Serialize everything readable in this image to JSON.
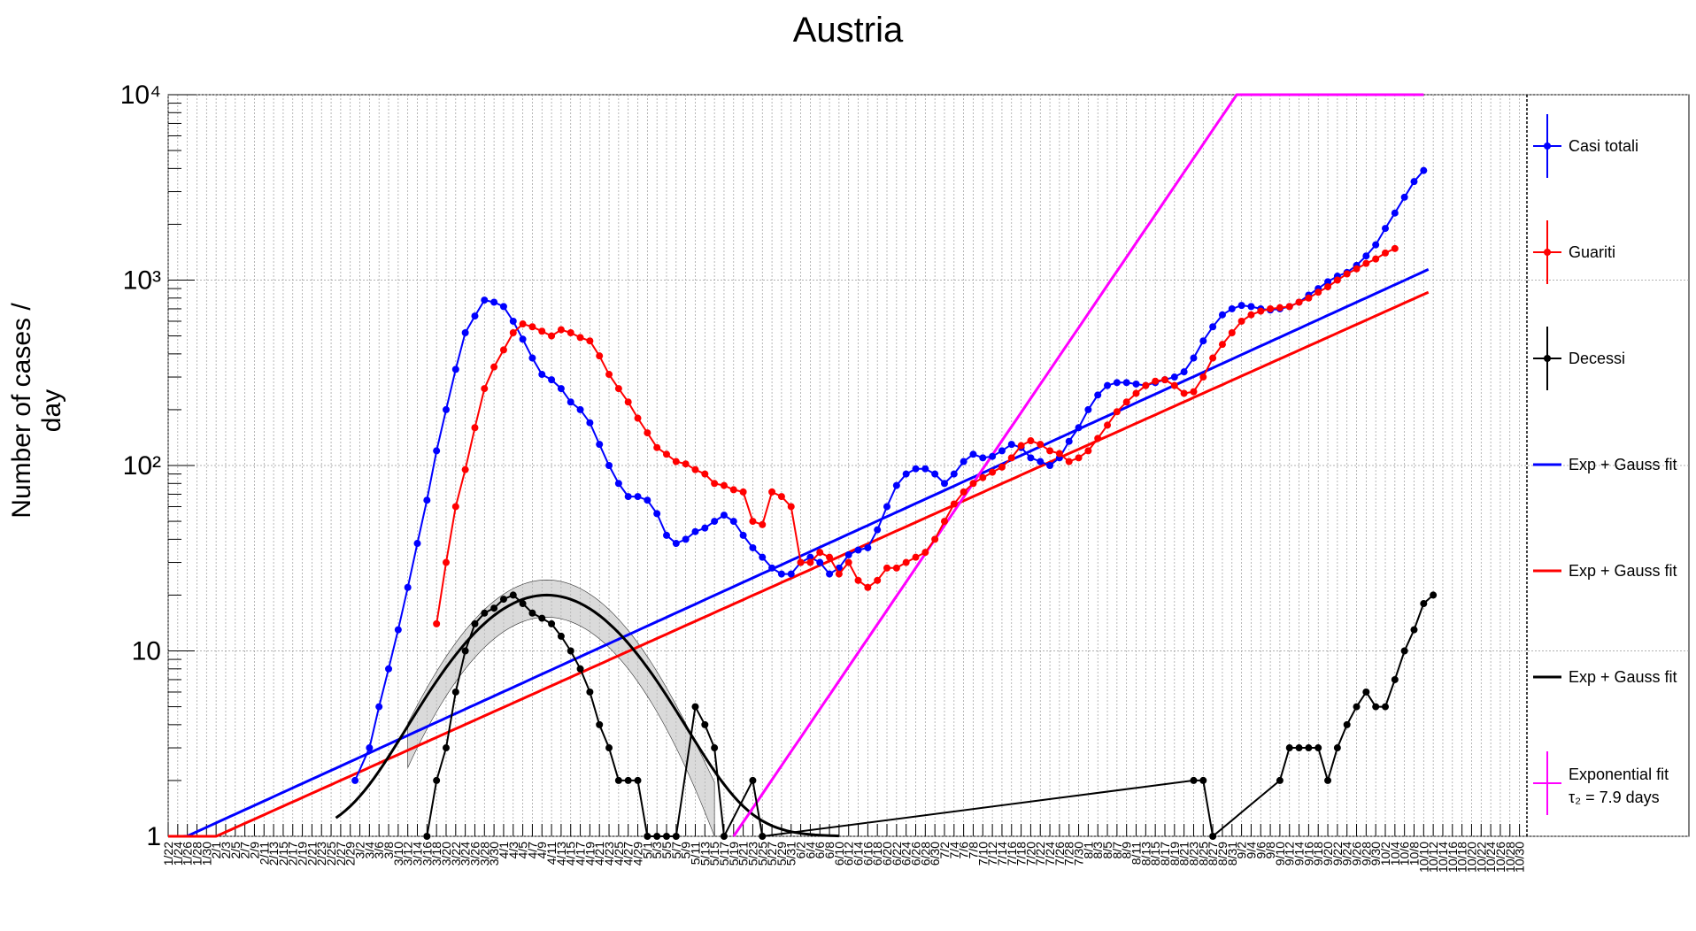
{
  "chart_data": {
    "type": "line",
    "title": "Austria",
    "ylabel": "Number of cases / day",
    "yscale": "log",
    "ylim": [
      1,
      10000
    ],
    "grid": true,
    "legend_position": "right",
    "y_ticks": [
      "1",
      "10",
      "10²",
      "10³",
      "10⁴"
    ],
    "x_ticks": [
      "1/22",
      "1/24",
      "1/26",
      "1/28",
      "1/30",
      "2/1",
      "2/3",
      "2/5",
      "2/7",
      "2/9",
      "2/11",
      "2/13",
      "2/15",
      "2/17",
      "2/19",
      "2/21",
      "2/23",
      "2/25",
      "2/27",
      "2/29",
      "3/2",
      "3/4",
      "3/6",
      "3/8",
      "3/10",
      "3/12",
      "3/14",
      "3/16",
      "3/18",
      "3/20",
      "3/22",
      "3/24",
      "3/26",
      "3/28",
      "3/30",
      "4/1",
      "4/3",
      "4/5",
      "4/7",
      "4/9",
      "4/11",
      "4/13",
      "4/15",
      "4/17",
      "4/19",
      "4/21",
      "4/23",
      "4/25",
      "4/27",
      "4/29",
      "5/1",
      "5/3",
      "5/5",
      "5/7",
      "5/9",
      "5/11",
      "5/13",
      "5/15",
      "5/17",
      "5/19",
      "5/21",
      "5/23",
      "5/25",
      "5/27",
      "5/29",
      "5/31",
      "6/2",
      "6/4",
      "6/6",
      "6/8",
      "6/10",
      "6/12",
      "6/14",
      "6/16",
      "6/18",
      "6/20",
      "6/22",
      "6/24",
      "6/26",
      "6/28",
      "6/30",
      "7/2",
      "7/4",
      "7/6",
      "7/8",
      "7/10",
      "7/12",
      "7/14",
      "7/16",
      "7/18",
      "7/20",
      "7/22",
      "7/24",
      "7/26",
      "7/28",
      "7/30",
      "8/1",
      "8/3",
      "8/5",
      "8/7",
      "8/9",
      "8/11",
      "8/13",
      "8/15",
      "8/17",
      "8/19",
      "8/21",
      "8/23",
      "8/25",
      "8/27",
      "8/29",
      "8/31",
      "9/2",
      "9/4",
      "9/6",
      "9/8",
      "9/10",
      "9/12",
      "9/14",
      "9/16",
      "9/18",
      "9/20",
      "9/22",
      "9/24",
      "9/26",
      "9/28",
      "9/30",
      "10/2",
      "10/4",
      "10/6",
      "10/8",
      "10/10",
      "10/12",
      "10/14",
      "10/16",
      "10/18",
      "10/20",
      "10/22",
      "10/24",
      "10/26",
      "10/28",
      "10/30"
    ],
    "series": [
      {
        "name": "Casi totali",
        "color": "#0000ff",
        "kind": "data",
        "points": [
          [
            39,
            2
          ],
          [
            42,
            3
          ],
          [
            44,
            5
          ],
          [
            46,
            8
          ],
          [
            48,
            13
          ],
          [
            50,
            22
          ],
          [
            52,
            38
          ],
          [
            54,
            65
          ],
          [
            56,
            120
          ],
          [
            58,
            200
          ],
          [
            60,
            330
          ],
          [
            62,
            520
          ],
          [
            64,
            640
          ],
          [
            66,
            780
          ],
          [
            68,
            760
          ],
          [
            70,
            720
          ],
          [
            72,
            600
          ],
          [
            74,
            480
          ],
          [
            76,
            380
          ],
          [
            78,
            310
          ],
          [
            80,
            290
          ],
          [
            82,
            260
          ],
          [
            84,
            220
          ],
          [
            86,
            200
          ],
          [
            88,
            170
          ],
          [
            90,
            130
          ],
          [
            92,
            100
          ],
          [
            94,
            80
          ],
          [
            96,
            68
          ],
          [
            98,
            68
          ],
          [
            100,
            65
          ],
          [
            102,
            55
          ],
          [
            104,
            42
          ],
          [
            106,
            38
          ],
          [
            108,
            40
          ],
          [
            110,
            44
          ],
          [
            112,
            46
          ],
          [
            114,
            50
          ],
          [
            116,
            54
          ],
          [
            118,
            50
          ],
          [
            120,
            42
          ],
          [
            122,
            36
          ],
          [
            124,
            32
          ],
          [
            126,
            28
          ],
          [
            128,
            26
          ],
          [
            130,
            26
          ],
          [
            132,
            30
          ],
          [
            134,
            32
          ],
          [
            136,
            30
          ],
          [
            138,
            26
          ],
          [
            140,
            28
          ],
          [
            142,
            33
          ],
          [
            144,
            35
          ],
          [
            146,
            36
          ],
          [
            148,
            45
          ],
          [
            150,
            60
          ],
          [
            152,
            78
          ],
          [
            154,
            90
          ],
          [
            156,
            96
          ],
          [
            158,
            96
          ],
          [
            160,
            90
          ],
          [
            162,
            80
          ],
          [
            164,
            90
          ],
          [
            166,
            105
          ],
          [
            168,
            115
          ],
          [
            170,
            110
          ],
          [
            172,
            112
          ],
          [
            174,
            120
          ],
          [
            176,
            130
          ],
          [
            178,
            125
          ],
          [
            180,
            110
          ],
          [
            182,
            105
          ],
          [
            184,
            100
          ],
          [
            186,
            110
          ],
          [
            188,
            135
          ],
          [
            190,
            160
          ],
          [
            192,
            200
          ],
          [
            194,
            240
          ],
          [
            196,
            270
          ],
          [
            198,
            280
          ],
          [
            200,
            280
          ],
          [
            202,
            275
          ],
          [
            204,
            270
          ],
          [
            206,
            280
          ],
          [
            208,
            290
          ],
          [
            210,
            300
          ],
          [
            212,
            320
          ],
          [
            214,
            380
          ],
          [
            216,
            470
          ],
          [
            218,
            560
          ],
          [
            220,
            650
          ],
          [
            222,
            700
          ],
          [
            224,
            730
          ],
          [
            226,
            720
          ],
          [
            228,
            700
          ],
          [
            230,
            690
          ],
          [
            232,
            700
          ],
          [
            234,
            720
          ],
          [
            236,
            760
          ],
          [
            238,
            830
          ],
          [
            240,
            900
          ],
          [
            242,
            980
          ],
          [
            244,
            1050
          ],
          [
            246,
            1100
          ],
          [
            248,
            1200
          ],
          [
            250,
            1350
          ],
          [
            252,
            1550
          ],
          [
            254,
            1900
          ],
          [
            256,
            2300
          ],
          [
            258,
            2800
          ],
          [
            260,
            3400
          ],
          [
            262,
            3900
          ]
        ]
      },
      {
        "name": "Guariti",
        "color": "#ff0000",
        "kind": "data",
        "points": [
          [
            56,
            14
          ],
          [
            58,
            30
          ],
          [
            60,
            60
          ],
          [
            62,
            95
          ],
          [
            64,
            160
          ],
          [
            66,
            260
          ],
          [
            68,
            340
          ],
          [
            70,
            420
          ],
          [
            72,
            520
          ],
          [
            74,
            580
          ],
          [
            76,
            560
          ],
          [
            78,
            530
          ],
          [
            80,
            500
          ],
          [
            82,
            540
          ],
          [
            84,
            520
          ],
          [
            86,
            490
          ],
          [
            88,
            470
          ],
          [
            90,
            390
          ],
          [
            92,
            310
          ],
          [
            94,
            260
          ],
          [
            96,
            220
          ],
          [
            98,
            180
          ],
          [
            100,
            150
          ],
          [
            102,
            125
          ],
          [
            104,
            115
          ],
          [
            106,
            105
          ],
          [
            108,
            102
          ],
          [
            110,
            95
          ],
          [
            112,
            90
          ],
          [
            114,
            80
          ],
          [
            116,
            78
          ],
          [
            118,
            74
          ],
          [
            120,
            72
          ],
          [
            122,
            50
          ],
          [
            124,
            48
          ],
          [
            126,
            72
          ],
          [
            128,
            68
          ],
          [
            130,
            60
          ],
          [
            132,
            30
          ],
          [
            134,
            30
          ],
          [
            136,
            34
          ],
          [
            138,
            32
          ],
          [
            140,
            26
          ],
          [
            142,
            30
          ],
          [
            144,
            24
          ],
          [
            146,
            22
          ],
          [
            148,
            24
          ],
          [
            150,
            28
          ],
          [
            152,
            28
          ],
          [
            154,
            30
          ],
          [
            156,
            32
          ],
          [
            158,
            34
          ],
          [
            160,
            40
          ],
          [
            162,
            50
          ],
          [
            164,
            62
          ],
          [
            166,
            72
          ],
          [
            168,
            80
          ],
          [
            170,
            86
          ],
          [
            172,
            92
          ],
          [
            174,
            98
          ],
          [
            176,
            110
          ],
          [
            178,
            128
          ],
          [
            180,
            136
          ],
          [
            182,
            130
          ],
          [
            184,
            120
          ],
          [
            186,
            116
          ],
          [
            188,
            105
          ],
          [
            190,
            110
          ],
          [
            192,
            120
          ],
          [
            194,
            140
          ],
          [
            196,
            165
          ],
          [
            198,
            195
          ],
          [
            200,
            220
          ],
          [
            202,
            245
          ],
          [
            204,
            270
          ],
          [
            206,
            285
          ],
          [
            208,
            290
          ],
          [
            210,
            270
          ],
          [
            212,
            245
          ],
          [
            214,
            250
          ],
          [
            216,
            300
          ],
          [
            218,
            380
          ],
          [
            220,
            450
          ],
          [
            222,
            520
          ],
          [
            224,
            600
          ],
          [
            226,
            650
          ],
          [
            228,
            680
          ],
          [
            230,
            700
          ],
          [
            232,
            710
          ],
          [
            234,
            720
          ],
          [
            236,
            760
          ],
          [
            238,
            800
          ],
          [
            240,
            860
          ],
          [
            242,
            920
          ],
          [
            244,
            1000
          ],
          [
            246,
            1080
          ],
          [
            248,
            1150
          ],
          [
            250,
            1230
          ],
          [
            252,
            1300
          ],
          [
            254,
            1400
          ],
          [
            256,
            1480
          ]
        ]
      },
      {
        "name": "Decessi",
        "color": "#000000",
        "kind": "data",
        "points": [
          [
            54,
            1
          ],
          [
            56,
            2
          ],
          [
            58,
            3
          ],
          [
            60,
            6
          ],
          [
            62,
            10
          ],
          [
            64,
            14
          ],
          [
            66,
            16
          ],
          [
            68,
            17
          ],
          [
            70,
            19
          ],
          [
            72,
            20
          ],
          [
            74,
            18
          ],
          [
            76,
            16
          ],
          [
            78,
            15
          ],
          [
            80,
            14
          ],
          [
            82,
            12
          ],
          [
            84,
            10
          ],
          [
            86,
            8
          ],
          [
            88,
            6
          ],
          [
            90,
            4
          ],
          [
            92,
            3
          ],
          [
            94,
            2
          ],
          [
            96,
            2
          ],
          [
            98,
            2
          ],
          [
            100,
            1
          ],
          [
            102,
            1
          ],
          [
            104,
            1
          ],
          [
            106,
            1
          ],
          [
            110,
            5
          ],
          [
            112,
            4
          ],
          [
            114,
            3
          ],
          [
            116,
            1
          ],
          [
            122,
            2
          ],
          [
            124,
            1
          ],
          [
            214,
            2
          ],
          [
            216,
            2
          ],
          [
            218,
            1
          ],
          [
            232,
            2
          ],
          [
            234,
            3
          ],
          [
            236,
            3
          ],
          [
            238,
            3
          ],
          [
            240,
            3
          ],
          [
            242,
            2
          ],
          [
            244,
            3
          ],
          [
            246,
            4
          ],
          [
            248,
            5
          ],
          [
            250,
            6
          ],
          [
            252,
            5
          ],
          [
            254,
            5
          ],
          [
            256,
            7
          ],
          [
            258,
            10
          ],
          [
            260,
            13
          ],
          [
            262,
            18
          ],
          [
            264,
            20
          ]
        ]
      },
      {
        "name": "Exp + Gauss fit",
        "color": "#0000ff",
        "kind": "fit"
      },
      {
        "name": "Exp + Gauss fit",
        "color": "#ff0000",
        "kind": "fit"
      },
      {
        "name": "Exp + Gauss fit",
        "color": "#000000",
        "kind": "fit"
      },
      {
        "name": "Exponential fit",
        "color": "#ff00ff",
        "kind": "fit",
        "note": "τ₂ = 7.9 days"
      }
    ]
  }
}
